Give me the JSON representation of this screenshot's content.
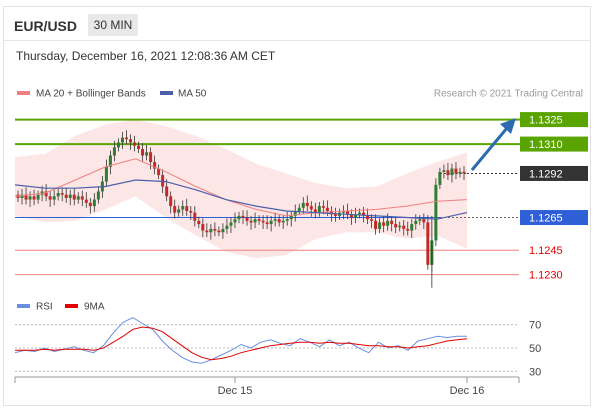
{
  "header": {
    "symbol": "EUR/USD",
    "timeframe": "30 MIN",
    "timestamp": "Thursday, December 16, 2021 12:08:36 AM CET"
  },
  "legend": {
    "ma20_label": "MA 20 + Bollinger Bands",
    "ma50_label": "MA 50",
    "credit": "Research © 2021 Trading Central",
    "rsi_label": "RSI",
    "ma9_label": "9MA"
  },
  "colors": {
    "green_level": "#5aa400",
    "blue_level": "#2f5fd6",
    "red_level": "#e00000",
    "current_price": "#333333",
    "bollinger_fill": "#fde2e2",
    "ma20": "#f08080",
    "ma50": "#4a5fa8",
    "rsi": "#6a8fe0",
    "ma9": "#e00000",
    "candle_up": "#2e7d32",
    "candle_down": "#c62828",
    "arrow": "#2b6cb0"
  },
  "chart_data": [
    {
      "type": "candlestick",
      "ylim": [
        1.122,
        1.1337
      ],
      "xlabels": [
        "Dec 15",
        "Dec 16"
      ],
      "levels": [
        {
          "label": "1.1325",
          "value": 1.1325,
          "kind": "resistance"
        },
        {
          "label": "1.1310",
          "value": 1.131,
          "kind": "resistance"
        },
        {
          "label": "1.1292",
          "value": 1.1292,
          "kind": "current"
        },
        {
          "label": "1.1265",
          "value": 1.1265,
          "kind": "pivot"
        },
        {
          "label": "1.1245",
          "value": 1.1245,
          "kind": "support"
        },
        {
          "label": "1.1230",
          "value": 1.123,
          "kind": "support"
        }
      ],
      "close_approx": [
        1.1277,
        1.1279,
        1.1276,
        1.1278,
        1.1276,
        1.1279,
        1.1281,
        1.1278,
        1.1276,
        1.1278,
        1.128,
        1.1279,
        1.1277,
        1.1279,
        1.1276,
        1.1278,
        1.1276,
        1.1274,
        1.1272,
        1.1276,
        1.1281,
        1.1287,
        1.1296,
        1.1303,
        1.1308,
        1.1311,
        1.1314,
        1.1313,
        1.1311,
        1.1309,
        1.1307,
        1.1303,
        1.1305,
        1.1299,
        1.1295,
        1.1291,
        1.1284,
        1.1278,
        1.1272,
        1.1268,
        1.127,
        1.1272,
        1.1269,
        1.1268,
        1.1263,
        1.1261,
        1.1257,
        1.1256,
        1.1258,
        1.1257,
        1.1256,
        1.1258,
        1.126,
        1.1262,
        1.1264,
        1.1266,
        1.1265,
        1.1263,
        1.1262,
        1.1264,
        1.1263,
        1.1262,
        1.1261,
        1.1263,
        1.1264,
        1.1262,
        1.1263,
        1.1264,
        1.1266,
        1.1269,
        1.1271,
        1.1274,
        1.1272,
        1.127,
        1.1268,
        1.1272,
        1.1271,
        1.1269,
        1.1267,
        1.1266,
        1.1268,
        1.1269,
        1.1267,
        1.1265,
        1.1267,
        1.1268,
        1.1266,
        1.1264,
        1.1263,
        1.1258,
        1.1262,
        1.126,
        1.1263,
        1.1261,
        1.1259,
        1.126,
        1.1258,
        1.1257,
        1.1261,
        1.1263,
        1.1264,
        1.1262,
        1.1236,
        1.1251,
        1.1285,
        1.1293,
        1.1294,
        1.1291,
        1.1295,
        1.1292,
        1.1293,
        1.1292
      ],
      "bollinger_upper": [
        1.1302,
        1.1304,
        1.1315,
        1.1322,
        1.1325,
        1.1321,
        1.1315,
        1.1307,
        1.1298,
        1.1292,
        1.1286,
        1.1283,
        1.1284,
        1.1292,
        1.1299,
        1.1305
      ],
      "bollinger_lower": [
        1.1266,
        1.1262,
        1.1263,
        1.127,
        1.1278,
        1.1265,
        1.1254,
        1.1244,
        1.124,
        1.1242,
        1.1252,
        1.1256,
        1.1256,
        1.1252,
        1.1254,
        1.1246
      ],
      "ma20": [
        1.1278,
        1.128,
        1.1288,
        1.1296,
        1.1301,
        1.1293,
        1.1284,
        1.1276,
        1.127,
        1.1266,
        1.1268,
        1.1269,
        1.127,
        1.1272,
        1.1275,
        1.1276
      ],
      "ma50": [
        1.1285,
        1.1283,
        1.1283,
        1.1284,
        1.1288,
        1.1287,
        1.1282,
        1.1276,
        1.1272,
        1.1269,
        1.1268,
        1.1267,
        1.1266,
        1.1265,
        1.1264,
        1.1268
      ]
    },
    {
      "type": "line",
      "name": "RSI",
      "ylim": [
        20,
        80
      ],
      "yticks": [
        "70",
        "50",
        "30"
      ],
      "rsi": [
        46,
        48,
        47,
        50,
        47,
        49,
        51,
        48,
        46,
        52,
        63,
        72,
        76,
        71,
        66,
        56,
        48,
        42,
        38,
        37,
        40,
        44,
        48,
        53,
        50,
        55,
        57,
        54,
        52,
        58,
        55,
        51,
        57,
        52,
        55,
        50,
        46,
        55,
        50,
        52,
        48,
        56,
        58,
        60,
        59,
        60,
        60
      ],
      "ma9": [
        48,
        48,
        48,
        49,
        48,
        49,
        49,
        49,
        48,
        50,
        55,
        60,
        66,
        68,
        67,
        64,
        58,
        52,
        46,
        42,
        40,
        41,
        43,
        46,
        48,
        50,
        52,
        53,
        54,
        55,
        55,
        54,
        55,
        54,
        54,
        53,
        52,
        52,
        51,
        51,
        50,
        51,
        52,
        54,
        56,
        57,
        58
      ]
    }
  ]
}
